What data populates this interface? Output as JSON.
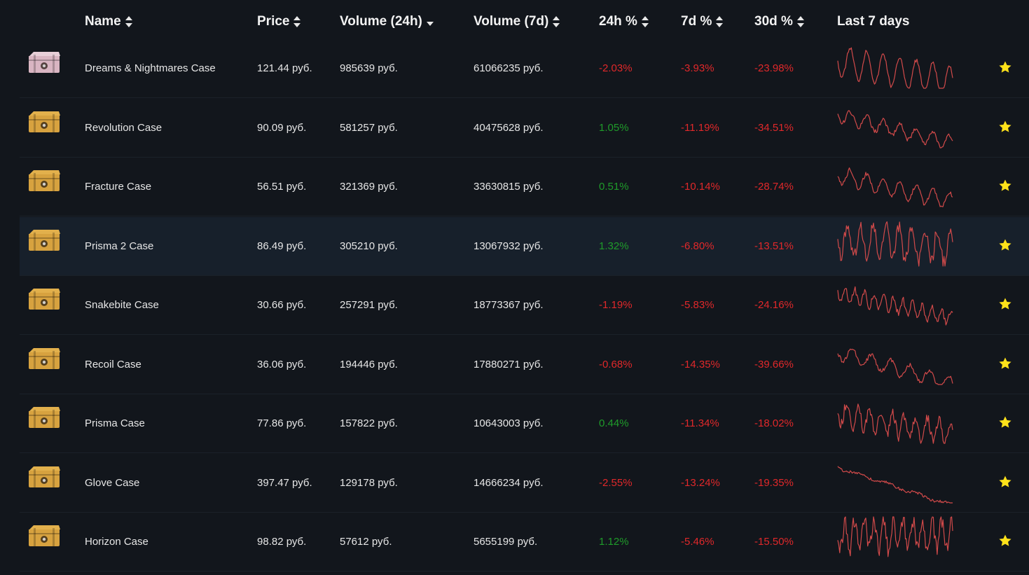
{
  "header": {
    "name": "Name",
    "price": "Price",
    "vol24": "Volume (24h)",
    "vol7": "Volume (7d)",
    "ch24": "24h %",
    "ch7": "7d %",
    "ch30": "30d %",
    "last7": "Last 7 days"
  },
  "colors": {
    "positive": "#1f9b2a",
    "negative": "#e0282a",
    "sparkline": "#d24a4a",
    "star": "#ffe21a",
    "case_gold": "#d7a23f",
    "case_pink": "#d9b5c2"
  },
  "rows": [
    {
      "name": "Dreams & Nightmares Case",
      "price": "121.44 руб.",
      "vol24": "985639 руб.",
      "vol7": "61066235 руб.",
      "ch24": "-2.03%",
      "ch7": "-3.93%",
      "ch30": "-23.98%",
      "icon": "case-icon-pink"
    },
    {
      "name": "Revolution Case",
      "price": "90.09 руб.",
      "vol24": "581257 руб.",
      "vol7": "40475628 руб.",
      "ch24": "1.05%",
      "ch7": "-11.19%",
      "ch30": "-34.51%",
      "icon": "case-icon-gold"
    },
    {
      "name": "Fracture Case",
      "price": "56.51 руб.",
      "vol24": "321369 руб.",
      "vol7": "33630815 руб.",
      "ch24": "0.51%",
      "ch7": "-10.14%",
      "ch30": "-28.74%",
      "icon": "case-icon-gold"
    },
    {
      "name": "Prisma 2 Case",
      "price": "86.49 руб.",
      "vol24": "305210 руб.",
      "vol7": "13067932 руб.",
      "ch24": "1.32%",
      "ch7": "-6.80%",
      "ch30": "-13.51%",
      "icon": "case-icon-gold"
    },
    {
      "name": "Snakebite Case",
      "price": "30.66 руб.",
      "vol24": "257291 руб.",
      "vol7": "18773367 руб.",
      "ch24": "-1.19%",
      "ch7": "-5.83%",
      "ch30": "-24.16%",
      "icon": "case-icon-gold"
    },
    {
      "name": "Recoil Case",
      "price": "36.06 руб.",
      "vol24": "194446 руб.",
      "vol7": "17880271 руб.",
      "ch24": "-0.68%",
      "ch7": "-14.35%",
      "ch30": "-39.66%",
      "icon": "case-icon-gold"
    },
    {
      "name": "Prisma Case",
      "price": "77.86 руб.",
      "vol24": "157822 руб.",
      "vol7": "10643003 руб.",
      "ch24": "0.44%",
      "ch7": "-11.34%",
      "ch30": "-18.02%",
      "icon": "case-icon-gold"
    },
    {
      "name": "Glove Case",
      "price": "397.47 руб.",
      "vol24": "129178 руб.",
      "vol7": "14666234 руб.",
      "ch24": "-2.55%",
      "ch7": "-13.24%",
      "ch30": "-19.35%",
      "icon": "case-icon-gold"
    },
    {
      "name": "Horizon Case",
      "price": "98.82 руб.",
      "vol24": "57612 руб.",
      "vol7": "5655199 руб.",
      "ch24": "1.12%",
      "ch7": "-5.46%",
      "ch30": "-15.50%",
      "icon": "case-icon-gold"
    }
  ]
}
